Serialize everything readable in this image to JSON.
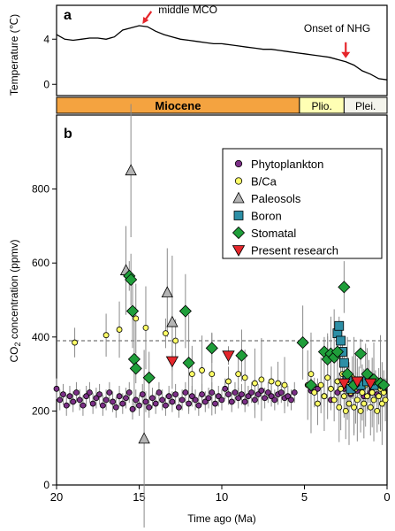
{
  "chart_data": [
    {
      "type": "line",
      "panel_label": "a",
      "ylabel": "Temperature (℃)",
      "xlim": [
        20,
        0
      ],
      "ylim": [
        -1,
        7
      ],
      "yticks": [
        0,
        4
      ],
      "x": [
        20,
        19.5,
        19,
        18.5,
        18,
        17.5,
        17,
        16.5,
        16,
        15.5,
        15,
        14.5,
        14,
        13.5,
        13,
        12.5,
        12,
        11.5,
        11,
        10.5,
        10,
        9.5,
        9,
        8.5,
        8,
        7.5,
        7,
        6.5,
        6,
        5.5,
        5,
        4.5,
        4,
        3.5,
        3,
        2.5,
        2,
        1.5,
        1,
        0.5,
        0
      ],
      "series": [
        {
          "values": [
            4.4,
            4.0,
            3.9,
            4.0,
            4.1,
            4.1,
            4.0,
            4.2,
            4.8,
            5.0,
            5.2,
            5.1,
            4.7,
            4.4,
            4.2,
            4.0,
            3.9,
            3.8,
            3.7,
            3.6,
            3.6,
            3.5,
            3.4,
            3.3,
            3.2,
            3.1,
            3.1,
            3.0,
            2.9,
            2.8,
            2.7,
            2.6,
            2.5,
            2.4,
            2.2,
            2.0,
            1.7,
            1.2,
            0.9,
            0.5,
            0.4
          ]
        }
      ],
      "annotations": [
        {
          "text": "middle MCO",
          "x": 14.8
        },
        {
          "text": "Onset of NHG",
          "x": 2.5
        }
      ],
      "epochs": [
        {
          "label": "Miocene",
          "from": 20,
          "to": 5.3,
          "color": "#f4a340"
        },
        {
          "label": "Plio.",
          "from": 5.3,
          "to": 2.6,
          "color": "#ffffb4"
        },
        {
          "label": "Plei.",
          "from": 2.6,
          "to": 0,
          "color": "#f4f4ec"
        }
      ]
    },
    {
      "type": "scatter",
      "panel_label": "b",
      "xlabel": "Time ago (Ma)",
      "ylabel_main": "CO",
      "ylabel_sub": "2",
      "ylabel_rest": " concentration (ppmv)",
      "xlim": [
        20,
        0
      ],
      "ylim": [
        0,
        1000
      ],
      "xticks": [
        20,
        15,
        10,
        5,
        0
      ],
      "yticks": [
        0,
        200,
        400,
        600,
        800
      ],
      "reference_line": 390,
      "legend_position": "top-right",
      "series": [
        {
          "name": "Phytoplankton",
          "marker": "circle",
          "color": "#7b2f86",
          "points": [
            [
              20.0,
              260
            ],
            [
              19.8,
              230
            ],
            [
              19.6,
              245
            ],
            [
              19.4,
              215
            ],
            [
              19.2,
              240
            ],
            [
              19.0,
              225
            ],
            [
              18.8,
              250
            ],
            [
              18.6,
              230
            ],
            [
              18.4,
              215
            ],
            [
              18.2,
              240
            ],
            [
              18.0,
              250
            ],
            [
              17.8,
              220
            ],
            [
              17.6,
              235
            ],
            [
              17.4,
              245
            ],
            [
              17.2,
              215
            ],
            [
              17.0,
              230
            ],
            [
              16.8,
              250
            ],
            [
              16.6,
              225
            ],
            [
              16.4,
              210
            ],
            [
              16.2,
              240
            ],
            [
              16.0,
              220
            ],
            [
              15.8,
              235
            ],
            [
              15.6,
              250
            ],
            [
              15.4,
              205
            ],
            [
              15.2,
              230
            ],
            [
              15.0,
              215
            ],
            [
              14.8,
              245
            ],
            [
              14.6,
              225
            ],
            [
              14.4,
              210
            ],
            [
              14.2,
              235
            ],
            [
              14.0,
              220
            ],
            [
              13.8,
              250
            ],
            [
              13.6,
              230
            ],
            [
              13.4,
              215
            ],
            [
              13.2,
              240
            ],
            [
              13.0,
              225
            ],
            [
              12.8,
              245
            ],
            [
              12.6,
              210
            ],
            [
              12.4,
              230
            ],
            [
              12.2,
              250
            ],
            [
              12.0,
              220
            ],
            [
              11.8,
              240
            ],
            [
              11.6,
              230
            ],
            [
              11.4,
              215
            ],
            [
              11.2,
              245
            ],
            [
              11.0,
              225
            ],
            [
              10.8,
              235
            ],
            [
              10.6,
              250
            ],
            [
              10.4,
              220
            ],
            [
              10.2,
              240
            ],
            [
              10.0,
              230
            ],
            [
              9.8,
              260
            ],
            [
              9.6,
              245
            ],
            [
              9.4,
              225
            ],
            [
              9.2,
              250
            ],
            [
              9.0,
              235
            ],
            [
              8.8,
              245
            ],
            [
              8.6,
              225
            ],
            [
              8.4,
              240
            ],
            [
              8.2,
              250
            ],
            [
              8.0,
              230
            ],
            [
              7.8,
              245
            ],
            [
              7.6,
              255
            ],
            [
              7.4,
              235
            ],
            [
              7.2,
              250
            ],
            [
              7.0,
              240
            ],
            [
              6.8,
              230
            ],
            [
              6.6,
              245
            ],
            [
              6.4,
              250
            ],
            [
              6.2,
              235
            ],
            [
              6.0,
              240
            ],
            [
              5.8,
              230
            ],
            [
              5.6,
              250
            ],
            [
              4.6,
              255
            ],
            [
              4.2,
              260
            ],
            [
              3.8,
              240
            ],
            [
              3.4,
              230
            ],
            [
              3.0,
              250
            ],
            [
              2.6,
              260
            ],
            [
              2.2,
              245
            ],
            [
              1.8,
              255
            ],
            [
              1.4,
              240
            ],
            [
              1.0,
              250
            ],
            [
              0.6,
              245
            ],
            [
              0.2,
              255
            ]
          ]
        },
        {
          "name": "B/Ca",
          "marker": "circle",
          "color": "#ffff66",
          "points": [
            [
              18.9,
              385
            ],
            [
              17.0,
              405
            ],
            [
              16.2,
              420
            ],
            [
              15.2,
              450
            ],
            [
              14.6,
              425
            ],
            [
              13.4,
              410
            ],
            [
              12.8,
              390
            ],
            [
              11.8,
              300
            ],
            [
              11.2,
              310
            ],
            [
              10.6,
              300
            ],
            [
              9.6,
              280
            ],
            [
              9.0,
              300
            ],
            [
              8.6,
              290
            ],
            [
              8.0,
              275
            ],
            [
              7.6,
              285
            ],
            [
              7.0,
              280
            ],
            [
              6.6,
              275
            ],
            [
              6.2,
              270
            ],
            [
              4.8,
              270
            ],
            [
              4.6,
              300
            ],
            [
              4.4,
              250
            ],
            [
              4.2,
              220
            ],
            [
              4.0,
              270
            ],
            [
              3.8,
              240
            ],
            [
              3.6,
              290
            ],
            [
              3.4,
              260
            ],
            [
              3.2,
              230
            ],
            [
              3.0,
              280
            ],
            [
              2.9,
              210
            ],
            [
              2.8,
              260
            ],
            [
              2.7,
              300
            ],
            [
              2.6,
              240
            ],
            [
              2.5,
              200
            ],
            [
              2.4,
              270
            ],
            [
              2.3,
              220
            ],
            [
              2.2,
              250
            ],
            [
              2.1,
              290
            ],
            [
              2.0,
              210
            ],
            [
              1.9,
              260
            ],
            [
              1.8,
              230
            ],
            [
              1.7,
              280
            ],
            [
              1.6,
              200
            ],
            [
              1.5,
              250
            ],
            [
              1.4,
              220
            ],
            [
              1.3,
              270
            ],
            [
              1.2,
              240
            ],
            [
              1.1,
              280
            ],
            [
              1.0,
              210
            ],
            [
              0.9,
              250
            ],
            [
              0.8,
              230
            ],
            [
              0.7,
              270
            ],
            [
              0.6,
              200
            ],
            [
              0.5,
              240
            ],
            [
              0.4,
              260
            ],
            [
              0.3,
              220
            ],
            [
              0.2,
              250
            ],
            [
              0.1,
              230
            ]
          ]
        },
        {
          "name": "Paleosols",
          "marker": "triangle-up",
          "color": "#b4b4b4",
          "points": [
            [
              15.8,
              580
            ],
            [
              15.5,
              850
            ],
            [
              14.7,
              125
            ],
            [
              13.3,
              520
            ],
            [
              13.0,
              440
            ]
          ]
        },
        {
          "name": "Boron",
          "marker": "square",
          "color": "#2d8fa6",
          "points": [
            [
              3.0,
              410
            ],
            [
              2.9,
              430
            ],
            [
              2.8,
              390
            ],
            [
              2.7,
              360
            ],
            [
              2.6,
              330
            ],
            [
              2.4,
              290
            ],
            [
              2.2,
              260
            ],
            [
              1.6,
              270
            ],
            [
              1.2,
              280
            ],
            [
              0.8,
              270
            ]
          ]
        },
        {
          "name": "Stomatal",
          "marker": "diamond",
          "color": "#1f9e3a",
          "points": [
            [
              15.6,
              565
            ],
            [
              15.5,
              555
            ],
            [
              15.4,
              470
            ],
            [
              15.3,
              340
            ],
            [
              15.2,
              315
            ],
            [
              14.4,
              290
            ],
            [
              12.2,
              470
            ],
            [
              12.0,
              330
            ],
            [
              10.6,
              370
            ],
            [
              8.8,
              350
            ],
            [
              5.1,
              385
            ],
            [
              4.6,
              270
            ],
            [
              3.8,
              360
            ],
            [
              3.6,
              340
            ],
            [
              3.4,
              355
            ],
            [
              3.2,
              345
            ],
            [
              3.0,
              360
            ],
            [
              2.6,
              535
            ],
            [
              2.4,
              300
            ],
            [
              2.0,
              270
            ],
            [
              1.6,
              355
            ],
            [
              1.2,
              300
            ],
            [
              0.8,
              285
            ],
            [
              0.4,
              275
            ],
            [
              0.2,
              270
            ]
          ]
        },
        {
          "name": "Present research",
          "marker": "triangle-down",
          "color": "#e5262b",
          "points": [
            [
              13.0,
              335
            ],
            [
              9.6,
              350
            ],
            [
              2.6,
              275
            ],
            [
              1.8,
              280
            ],
            [
              1.0,
              275
            ]
          ]
        }
      ]
    }
  ]
}
